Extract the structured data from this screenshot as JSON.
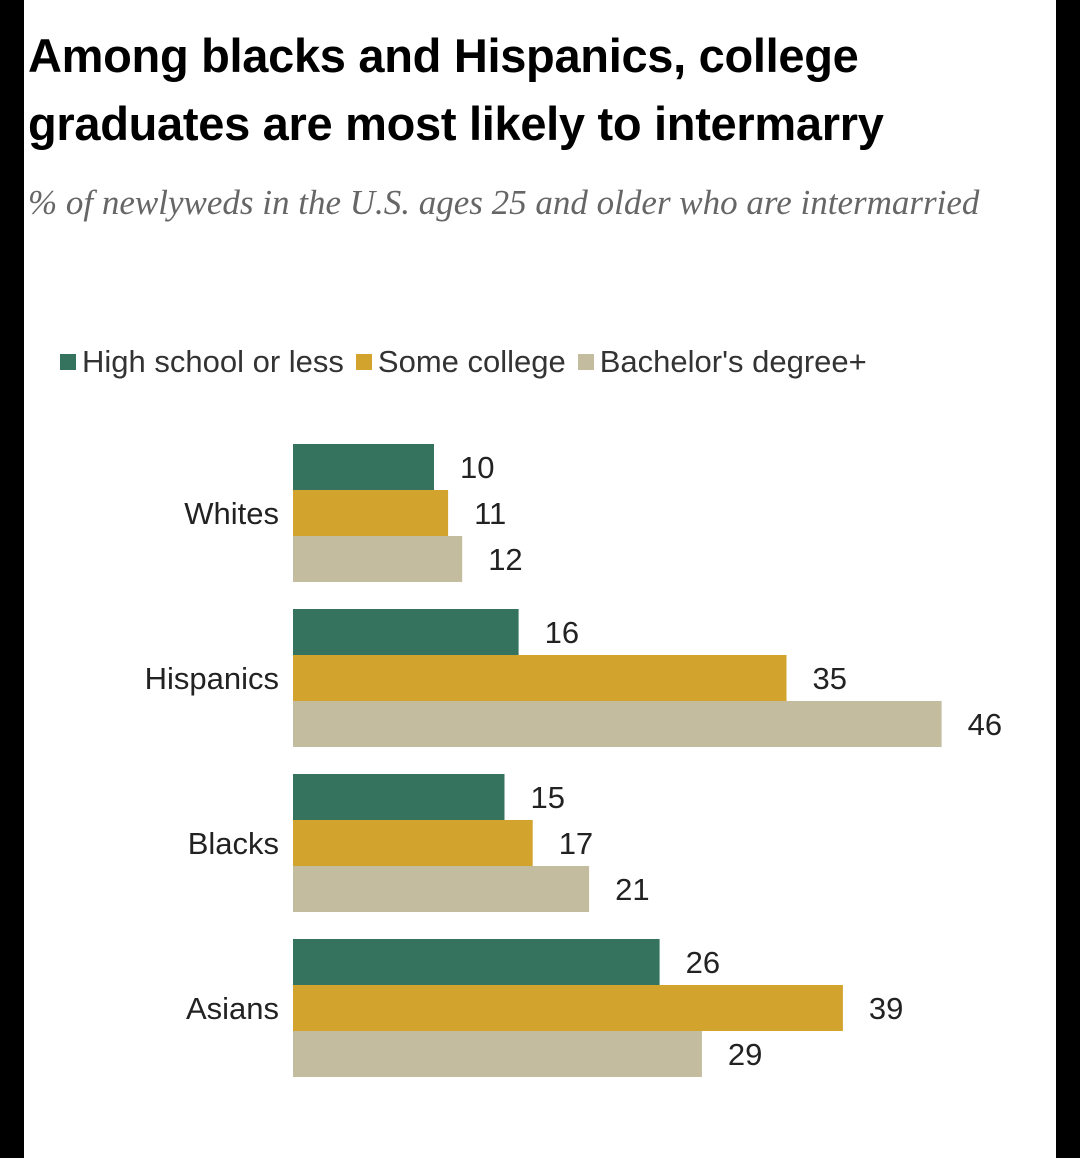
{
  "colors": {
    "high_school": "#36735f",
    "some_college": "#d2a42d",
    "bachelors": "#c4bc9e"
  },
  "chart_data": {
    "type": "bar",
    "orientation": "horizontal",
    "title": "Among blacks and Hispanics, college graduates are most likely to intermarry",
    "subtitle": "% of newlyweds in the U.S. ages 25 and older who are intermarried",
    "categories": [
      "Whites",
      "Hispanics",
      "Blacks",
      "Asians"
    ],
    "series": [
      {
        "name": "High school or less",
        "color_key": "high_school",
        "values": [
          10,
          16,
          15,
          26
        ]
      },
      {
        "name": "Some college",
        "color_key": "some_college",
        "values": [
          11,
          35,
          17,
          39
        ]
      },
      {
        "name": "Bachelor's degree+",
        "color_key": "bachelors",
        "values": [
          12,
          46,
          21,
          29
        ]
      }
    ],
    "xlabel": "",
    "ylabel": "",
    "xlim": [
      0,
      46
    ],
    "grid": false,
    "legend": "top"
  }
}
